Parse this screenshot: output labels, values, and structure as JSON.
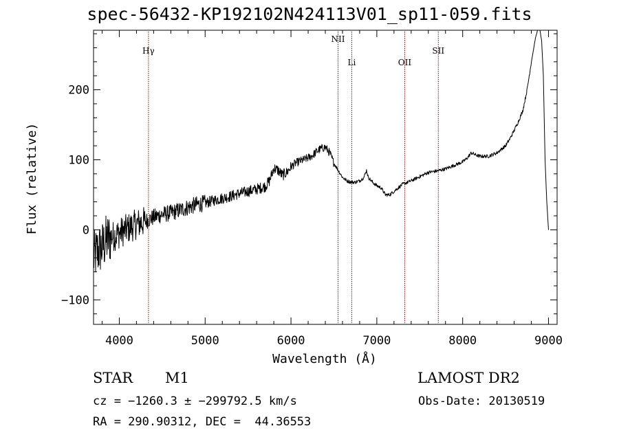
{
  "chart_data": {
    "type": "line",
    "title": "spec-56432-KP192102N424113V01_sp11-059.fits",
    "xlabel": "Wavelength (Å)",
    "ylabel": "Flux (relative)",
    "xlim": [
      3700,
      9100
    ],
    "ylim": [
      -135,
      285
    ],
    "xticks": [
      4000,
      5000,
      6000,
      7000,
      8000,
      9000
    ],
    "yticks": [
      -100,
      0,
      100,
      200
    ],
    "xtick_labels": [
      "4000",
      "5000",
      "6000",
      "7000",
      "8000",
      "9000"
    ],
    "ytick_labels": [
      "−100",
      "0",
      "100",
      "200"
    ],
    "series": [
      {
        "name": "spectrum",
        "x": [
          3700,
          3750,
          3800,
          3850,
          3900,
          3950,
          4000,
          4100,
          4200,
          4300,
          4400,
          4500,
          4600,
          4700,
          4800,
          4900,
          5000,
          5100,
          5200,
          5300,
          5400,
          5500,
          5600,
          5700,
          5750,
          5800,
          5850,
          5900,
          5950,
          6000,
          6050,
          6100,
          6150,
          6200,
          6250,
          6300,
          6350,
          6400,
          6450,
          6500,
          6550,
          6600,
          6650,
          6700,
          6750,
          6800,
          6850,
          6880,
          6900,
          6950,
          7000,
          7050,
          7100,
          7150,
          7200,
          7300,
          7400,
          7500,
          7600,
          7700,
          7800,
          7900,
          8000,
          8050,
          8100,
          8150,
          8200,
          8300,
          8400,
          8500,
          8550,
          8600,
          8650,
          8700,
          8750,
          8800,
          8850,
          8880,
          8900,
          8920,
          8940,
          8960,
          8980,
          9000
        ],
        "y": [
          -40,
          -30,
          -25,
          -15,
          -10,
          -8,
          -5,
          2,
          8,
          12,
          18,
          22,
          24,
          28,
          32,
          36,
          38,
          42,
          45,
          48,
          52,
          55,
          58,
          62,
          70,
          88,
          85,
          78,
          82,
          90,
          95,
          98,
          100,
          103,
          106,
          112,
          116,
          118,
          110,
          95,
          85,
          75,
          70,
          68,
          68,
          70,
          75,
          85,
          75,
          68,
          63,
          60,
          50,
          50,
          55,
          65,
          70,
          76,
          82,
          84,
          87,
          92,
          97,
          102,
          110,
          107,
          105,
          105,
          110,
          120,
          130,
          142,
          155,
          170,
          200,
          240,
          275,
          288,
          285,
          270,
          220,
          100,
          40,
          0
        ]
      }
    ],
    "line_markers": [
      {
        "label": "Hγ",
        "wavelength": 4340,
        "label_level": "upper"
      },
      {
        "label": "NII",
        "wavelength": 6548,
        "label_level": "top"
      },
      {
        "label": "Li",
        "wavelength": 6708,
        "label_level": "lower"
      },
      {
        "label": "OII",
        "wavelength": 7325,
        "label_level": "lower"
      },
      {
        "label": "SII",
        "wavelength": 7716,
        "label_level": "upper"
      }
    ]
  },
  "info": {
    "object_class": "STAR",
    "subclass": "M1",
    "survey": "LAMOST DR2",
    "cz_line": "cz = −1260.3 ± −299792.5 km/s",
    "obs_date": "Obs-Date: 20130519",
    "radec_line": "RA = 290.90312, DEC =  44.36553"
  },
  "colors": {
    "spectrum": "#000000",
    "marker": "#8b0000",
    "axis": "#000000",
    "background": "#ffffff"
  }
}
